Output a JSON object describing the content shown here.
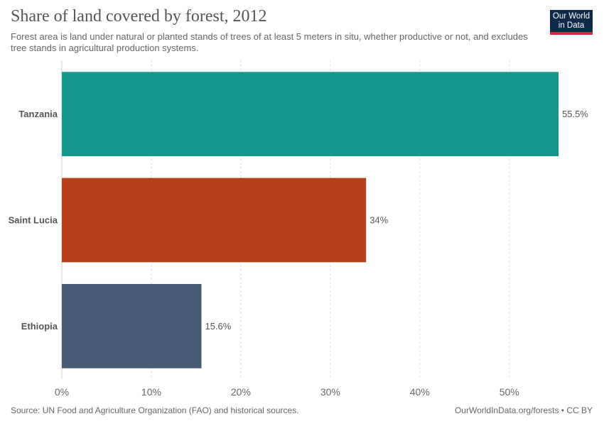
{
  "header": {
    "title": "Share of land covered by forest, 2012",
    "subtitle": "Forest area is land under natural or planted stands of trees of at least 5 meters in situ, whether productive or not, and excludes tree stands in agricultural production systems.",
    "logo_line1": "Our World",
    "logo_line2": "in Data"
  },
  "footer": {
    "source": "Source: UN Food and Agriculture Organization (FAO) and historical sources.",
    "credit": "OurWorldInData.org/forests • CC BY"
  },
  "colors": {
    "logo_background": "#0e2a4a",
    "logo_accent": "#d42b3a",
    "grid": "#dddddd"
  },
  "chart_data": {
    "type": "bar",
    "orientation": "horizontal",
    "title": "Share of land covered by forest, 2012",
    "categories": [
      "Tanzania",
      "Saint Lucia",
      "Ethiopia"
    ],
    "values": [
      55.5,
      34,
      15.6
    ],
    "value_labels": [
      "55.5%",
      "34%",
      "15.6%"
    ],
    "colors": [
      "#15968b",
      "#b5411a",
      "#465a74"
    ],
    "xlim": [
      0,
      55.5
    ],
    "x_ticks": [
      0,
      10,
      20,
      30,
      40,
      50
    ],
    "x_tick_labels": [
      "0%",
      "10%",
      "20%",
      "30%",
      "40%",
      "50%"
    ],
    "grid": true,
    "legend": "none"
  }
}
